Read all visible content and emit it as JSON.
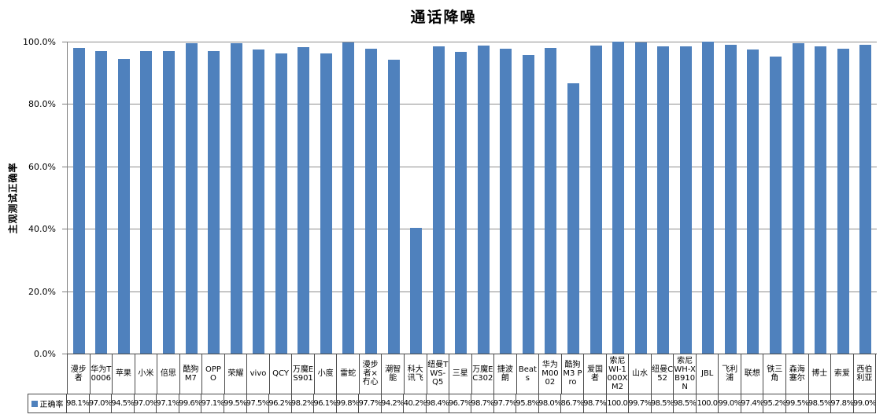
{
  "chart_data": {
    "type": "bar",
    "title": "通话降噪",
    "ylabel": "主观测试正确率",
    "xlabel": "",
    "series_name": "正确率",
    "categories": [
      "漫步者",
      "华为T0006",
      "苹果",
      "小米",
      "倍思",
      "酷狗M7",
      "OPPO",
      "荣耀",
      "vivo",
      "QCY",
      "万魔ES901",
      "小度",
      "雷蛇",
      "漫步者×冇心",
      "潮智能",
      "科大讯飞",
      "纽曼TWS-Q5",
      "三星",
      "万魔EC302",
      "捷波朗",
      "Beats",
      "华为M0002",
      "酷狗M3 Pro",
      "爱国者",
      "索尼WI-1000XM2",
      "山水",
      "纽曼C52",
      "索尼WH-XB910N",
      "JBL",
      "飞利浦",
      "联想",
      "铁三角",
      "森海塞尔",
      "博士",
      "索爱",
      "西伯利亚"
    ],
    "values": [
      98.1,
      97.0,
      94.5,
      97.0,
      97.1,
      99.6,
      97.1,
      99.5,
      97.5,
      96.2,
      98.2,
      96.1,
      99.8,
      97.7,
      94.2,
      40.2,
      98.4,
      96.7,
      98.7,
      97.7,
      95.8,
      98.0,
      86.7,
      98.7,
      100.0,
      99.7,
      98.5,
      98.5,
      100.0,
      99.0,
      97.4,
      95.2,
      99.5,
      98.5,
      97.8,
      99.0
    ],
    "value_labels": [
      "98.1%",
      "97.0%",
      "94.5%",
      "97.0%",
      "97.1%",
      "99.6%",
      "97.1%",
      "99.5%",
      "97.5%",
      "96.2%",
      "98.2%",
      "96.1%",
      "99.8%",
      "97.7%",
      "94.2%",
      "40.2%",
      "98.4%",
      "96.7%",
      "98.7%",
      "97.7%",
      "95.8%",
      "98.0%",
      "86.7%",
      "98.7%",
      "100.0",
      "99.7%",
      "98.5%",
      "98.5%",
      "100.0",
      "99.0%",
      "97.4%",
      "95.2%",
      "99.5%",
      "98.5%",
      "97.8%",
      "99.0%"
    ],
    "y_ticks": [
      "0.0%",
      "20.0%",
      "40.0%",
      "60.0%",
      "80.0%",
      "100.0%"
    ],
    "ylim": [
      0,
      100
    ],
    "grid": true,
    "legend_position": "bottom-left of data table",
    "layout": "bars with attached data table below x-axis",
    "colors": {
      "bar": "#4F81BD",
      "gridline": "#8e8e8e",
      "table_border": "#4a4a4a",
      "text": "#000000",
      "background": "#ffffff"
    }
  }
}
